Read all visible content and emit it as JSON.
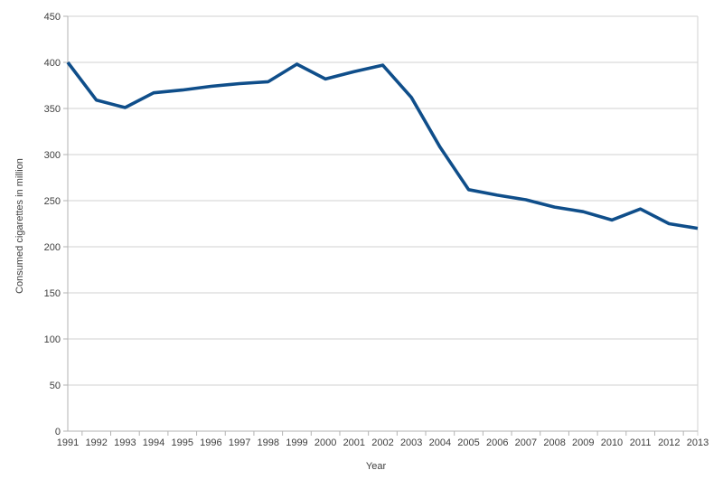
{
  "chart_data": {
    "type": "line",
    "title": "",
    "xlabel": "Year",
    "ylabel": "Consumed cigarettes in million",
    "x": [
      "1991",
      "1992",
      "1993",
      "1994",
      "1995",
      "1996",
      "1997",
      "1998",
      "1999",
      "2000",
      "2001",
      "2002",
      "2003",
      "2004",
      "2005",
      "2006",
      "2007",
      "2008",
      "2009",
      "2010",
      "2011",
      "2012",
      "2013"
    ],
    "values": [
      400,
      359,
      351,
      367,
      370,
      374,
      377,
      379,
      398,
      382,
      390,
      397,
      362,
      308,
      262,
      256,
      251,
      243,
      238,
      229,
      241,
      225,
      220
    ],
    "ylim": [
      0,
      450
    ],
    "ytick_step": 50,
    "grid": "horizontal",
    "legend": "none"
  },
  "colors": {
    "line": "#0f4e8a",
    "grid": "#d2d2d2",
    "axis": "#b3b3b3",
    "text": "#3e3e3e",
    "background": "#ffffff"
  }
}
